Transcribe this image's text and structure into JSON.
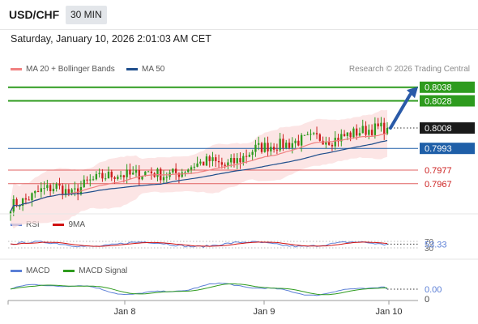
{
  "header": {
    "pair": "USD/CHF",
    "timeframe": "30 MIN",
    "datetime": "Saturday, January 10, 2026 2:01:03 AM CET"
  },
  "legend": {
    "ma20": "MA 20 + Bollinger Bands",
    "ma50": "MA 50",
    "ma20_color": "#f08080",
    "ma50_color": "#1f4e8c"
  },
  "credit": "Research © 2026 Trading Central",
  "rsi_legend": {
    "rsi": "RSI",
    "ma": "9MA",
    "rsi_color": "#5b7fd6",
    "ma_color": "#d01010"
  },
  "macd_legend": {
    "macd": "MACD",
    "signal": "MACD Signal",
    "macd_color": "#5b7fd6",
    "signal_color": "#2e9b1e"
  },
  "colors": {
    "up": "#2e9b1e",
    "down": "#cc1f1f",
    "blue": "#1f5fa8",
    "dark": "#1a1a1a"
  },
  "chart_data": {
    "type": "candlestick",
    "x_ticks": [
      "Jan 8",
      "Jan 9",
      "Jan 10"
    ],
    "price_levels": [
      {
        "value": 0.8038,
        "label": "0.8038",
        "kind": "resistance"
      },
      {
        "value": 0.8028,
        "label": "0.8028",
        "kind": "resistance"
      },
      {
        "value": 0.8008,
        "label": "0.8008",
        "kind": "last"
      },
      {
        "value": 0.7993,
        "label": "0.7993",
        "kind": "pivot"
      },
      {
        "value": 0.7977,
        "label": "0.7977",
        "kind": "support"
      },
      {
        "value": 0.7967,
        "label": "0.7967",
        "kind": "support"
      }
    ],
    "price_scale": {
      "min": 0.7946,
      "max": 0.8045
    },
    "close_path": [
      [
        0,
        0.7951
      ],
      [
        5,
        0.7955
      ],
      [
        10,
        0.7962
      ],
      [
        15,
        0.7965
      ],
      [
        20,
        0.7959
      ],
      [
        25,
        0.7968
      ],
      [
        30,
        0.7972
      ],
      [
        35,
        0.7974
      ],
      [
        40,
        0.7973
      ],
      [
        45,
        0.7976
      ],
      [
        50,
        0.7973
      ],
      [
        55,
        0.7975
      ],
      [
        60,
        0.7981
      ],
      [
        65,
        0.7984
      ],
      [
        70,
        0.798
      ],
      [
        75,
        0.7985
      ],
      [
        80,
        0.7993
      ],
      [
        85,
        0.7995
      ],
      [
        90,
        0.7996
      ],
      [
        95,
        0.7999
      ],
      [
        100,
        0.8001
      ],
      [
        105,
        0.7999
      ],
      [
        110,
        0.8003
      ],
      [
        115,
        0.8006
      ],
      [
        120,
        0.8008
      ],
      [
        123,
        0.8008
      ]
    ],
    "rsi": {
      "current": 53.33,
      "overbought": 70,
      "oversold": 30,
      "current_label": "53.33",
      "ob_label": "70",
      "os_label": "30"
    },
    "macd": {
      "current": 0.0,
      "current_label": "0.00",
      "zero_label": "0"
    }
  }
}
